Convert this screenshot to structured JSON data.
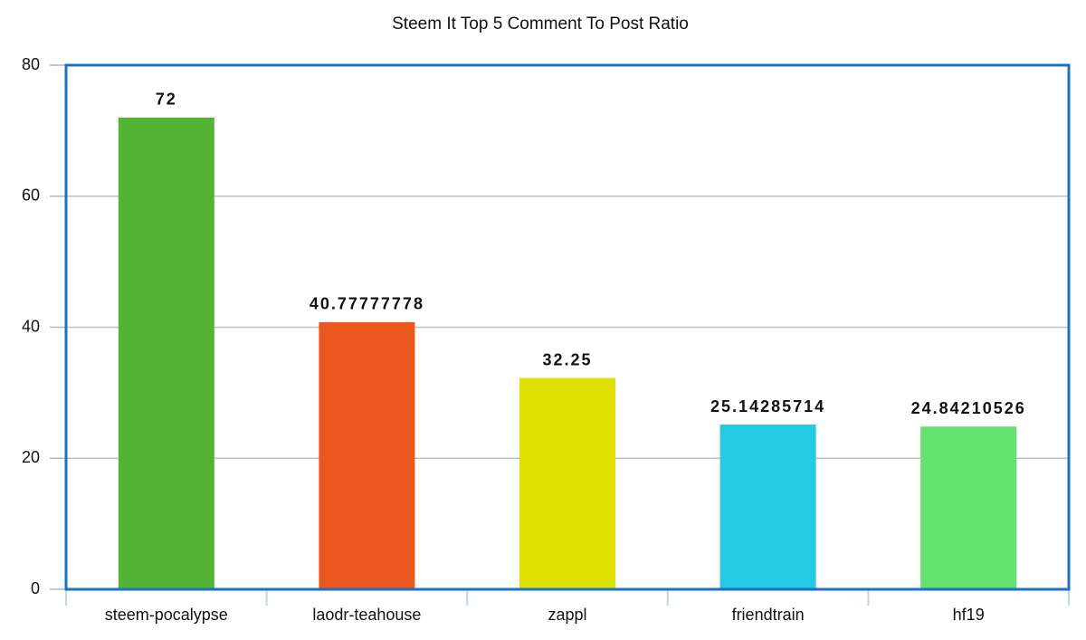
{
  "chart_data": {
    "type": "bar",
    "title": "Steem It Top 5 Comment To Post Ratio",
    "categories": [
      "steem-pocalypse",
      "laodr-teahouse",
      "zappl",
      "friendtrain",
      "hf19"
    ],
    "values": [
      72,
      40.77777778,
      32.25,
      25.14285714,
      24.84210526
    ],
    "colors": [
      "#52b335",
      "#ec561f",
      "#dde000",
      "#25c9e3",
      "#63e26f"
    ],
    "ylim": [
      0,
      80
    ],
    "yticks": [
      0,
      20,
      40,
      60,
      80
    ],
    "grid": true
  }
}
